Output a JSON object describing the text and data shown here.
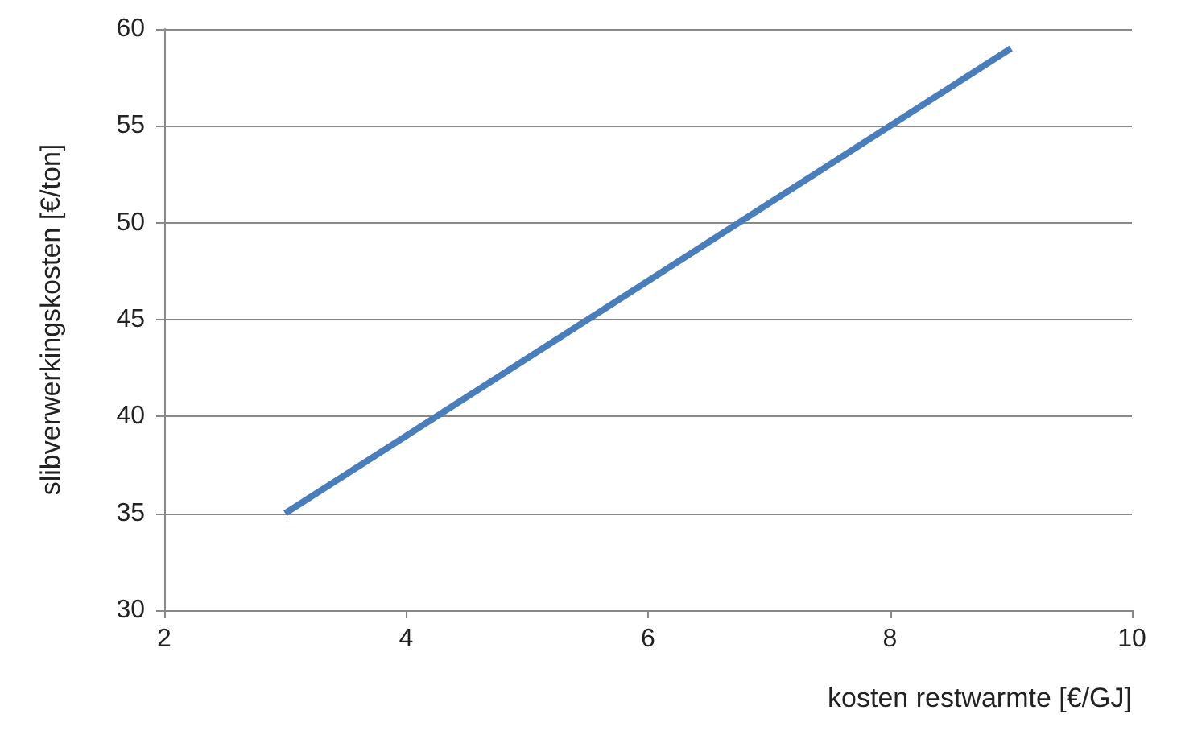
{
  "chart_data": {
    "type": "line",
    "xlabel": "kosten restwarmte [€/GJ]",
    "ylabel": "slibverwerkingskosten [€/ton]",
    "x": [
      3,
      9
    ],
    "series": [
      {
        "color": "#4a7ebb",
        "values": [
          35,
          59
        ]
      }
    ],
    "xlim": [
      2,
      10
    ],
    "xticks": [
      2,
      4,
      6,
      8,
      10
    ],
    "ylim": [
      30,
      60
    ],
    "yticks": [
      30,
      35,
      40,
      45,
      50,
      55,
      60
    ],
    "grid": "y",
    "marker": "none",
    "line_style": "solid"
  }
}
